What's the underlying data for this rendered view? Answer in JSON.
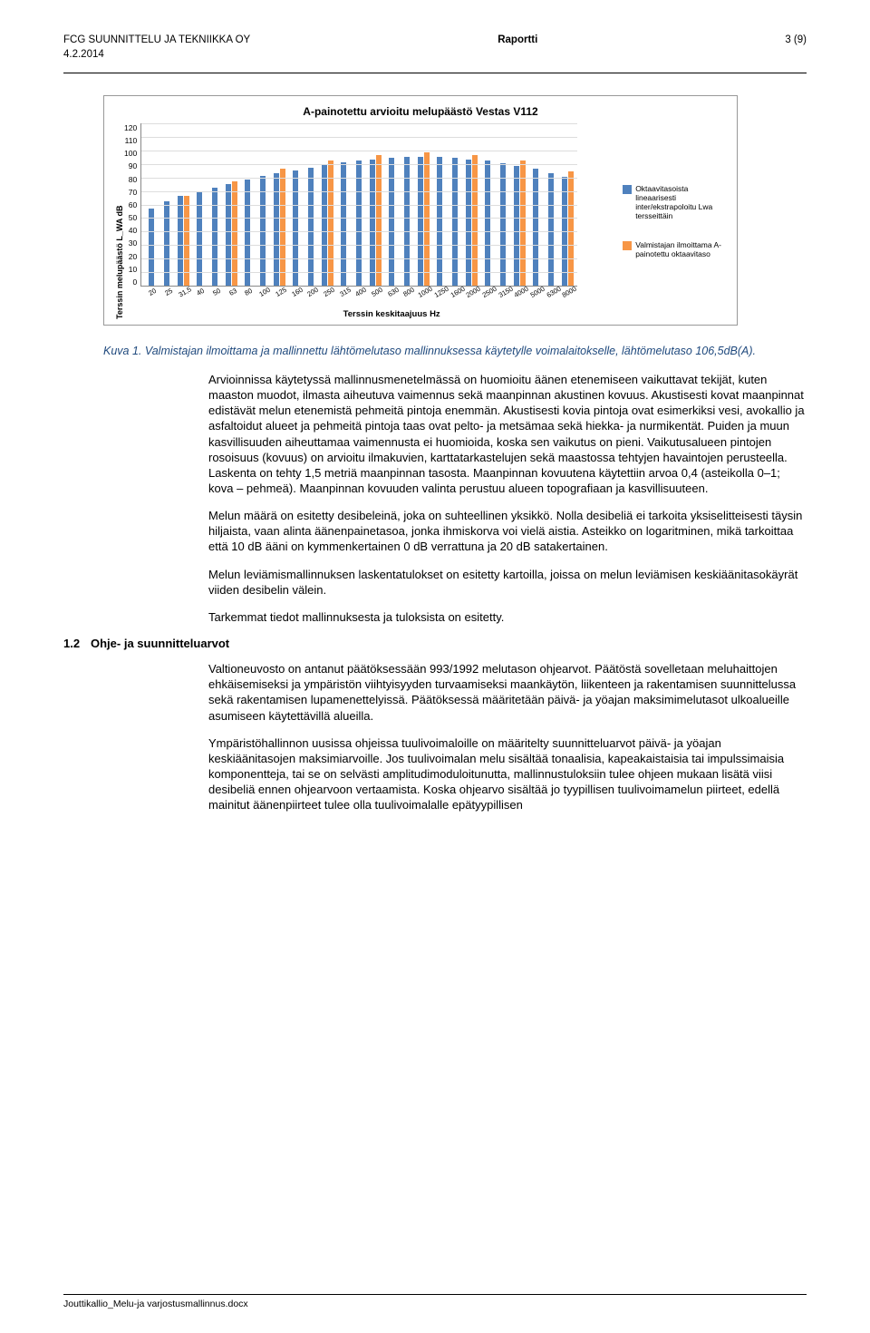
{
  "header": {
    "company": "FCG SUUNNITTELU JA TEKNIIKKA OY",
    "title": "Raportti",
    "page": "3 (9)",
    "date": "4.2.2014"
  },
  "chart": {
    "type": "bar",
    "title": "A-painotettu arvioitu melupäästö Vestas V112",
    "y_label": "Terssin melupäästö L_WA dB",
    "x_label": "Terssin keskitaajuus Hz",
    "y_ticks": [
      "120",
      "110",
      "100",
      "90",
      "80",
      "70",
      "60",
      "50",
      "40",
      "30",
      "20",
      "10",
      "0"
    ],
    "y_max": 120,
    "x_ticks": [
      "20",
      "25",
      "31,5",
      "40",
      "50",
      "63",
      "80",
      "100",
      "125",
      "160",
      "200",
      "250",
      "315",
      "400",
      "500",
      "630",
      "800",
      "1000",
      "1250",
      "1600",
      "2000",
      "2500",
      "3150",
      "4000",
      "5000",
      "6300",
      "8000"
    ],
    "series": [
      {
        "name": "Oktaavitasoista lineaarisesti inter/ekstrapoloitu Lwa tersseittäin",
        "color": "#4f81bd",
        "values": [
          57,
          62,
          66,
          69,
          72,
          75,
          78,
          81,
          83,
          85,
          87,
          89,
          91,
          92,
          93,
          94,
          95,
          95,
          95,
          94,
          93,
          92,
          90,
          88,
          86,
          83,
          80
        ]
      },
      {
        "name": "Valmistajan ilmoittama A-painotettu oktaavitaso",
        "color": "#f79646",
        "values": [
          null,
          null,
          66,
          null,
          null,
          77,
          null,
          null,
          86,
          null,
          null,
          92,
          null,
          null,
          96,
          null,
          null,
          98,
          null,
          null,
          96,
          null,
          null,
          92,
          null,
          null,
          84
        ]
      }
    ],
    "grid_color": "#dddddd",
    "background": "#ffffff"
  },
  "caption": "Kuva 1. Valmistajan ilmoittama ja mallinnettu lähtömelutaso mallinnuksessa käytetylle voimalaitokselle, lähtömelutaso 106,5dB(A).",
  "paragraphs": {
    "p1": "Arvioinnissa käytetyssä mallinnusmenetelmässä on huomioitu äänen etenemiseen vaikuttavat tekijät, kuten maaston muodot, ilmasta aiheutuva vaimennus sekä maanpinnan akustinen kovuus. Akustisesti kovat maanpinnat edistävät melun etenemistä pehmeitä pintoja enemmän. Akustisesti kovia pintoja ovat esimerkiksi vesi, avokallio ja asfaltoidut alueet ja pehmeitä pintoja taas ovat pelto- ja metsämaa sekä hiekka- ja nurmikentät. Puiden ja muun kasvillisuuden aiheuttamaa vaimennusta ei huomioida, koska sen vaikutus on pieni. Vaikutusalueen pintojen rosoisuus (kovuus) on arvioitu ilmakuvien, karttatarkastelujen sekä maastossa tehtyjen havaintojen perusteella. Laskenta on tehty 1,5 metriä maanpinnan tasosta. Maanpinnan kovuutena käytettiin arvoa 0,4 (asteikolla 0–1; kova – pehmeä). Maanpinnan kovuuden valinta perustuu alueen topografiaan ja kasvillisuuteen.",
    "p2": "Melun määrä on esitetty desibeleinä, joka on suhteellinen yksikkö. Nolla desibeliä ei tarkoita yksiselitteisesti täysin hiljaista, vaan alinta äänenpainetasoa, jonka ihmiskorva voi vielä aistia. Asteikko on logaritminen, mikä tarkoittaa että 10 dB ääni on kymmenkertainen 0 dB verrattuna ja 20 dB satakertainen.",
    "p3": "Melun leviämismallinnuksen laskentatulokset on esitetty kartoilla, joissa on melun leviämisen keskiäänitasokäyrät viiden desibelin välein.",
    "p4": "Tarkemmat tiedot mallinnuksesta ja tuloksista on esitetty.",
    "p5": "Valtioneuvosto on antanut päätöksessään 993/1992 melutason ohjearvot. Päätöstä sovelletaan meluhaittojen ehkäisemiseksi ja ympäristön viihtyisyyden turvaamiseksi maankäytön, liikenteen ja rakentamisen suunnittelussa sekä rakentamisen lupamenettelyissä. Päätöksessä määritetään päivä- ja yöajan maksimimelutasot ulkoalueille asumiseen käytettävillä alueilla.",
    "p6": "Ympäristöhallinnon uusissa ohjeissa tuulivoimaloille on määritelty suunnitteluarvot päivä- ja yöajan keskiäänitasojen maksimiarvoille. Jos tuulivoimalan melu sisältää tonaalisia, kapeakaistaisia tai impulssimaisia komponentteja, tai se on selvästi amplitudimoduloitunutta, mallinnustuloksiin tulee ohjeen mukaan lisätä viisi desibeliä ennen ohjearvoon vertaamista. Koska ohjearvo sisältää jo tyypillisen tuulivoimamelun piirteet, edellä mainitut äänenpiirteet tulee olla tuulivoimalalle epätyypillisen"
  },
  "section": {
    "number": "1.2",
    "title": "Ohje- ja suunnitteluarvot"
  },
  "footer": "Jouttikallio_Melu-ja varjostusmallinnus.docx"
}
